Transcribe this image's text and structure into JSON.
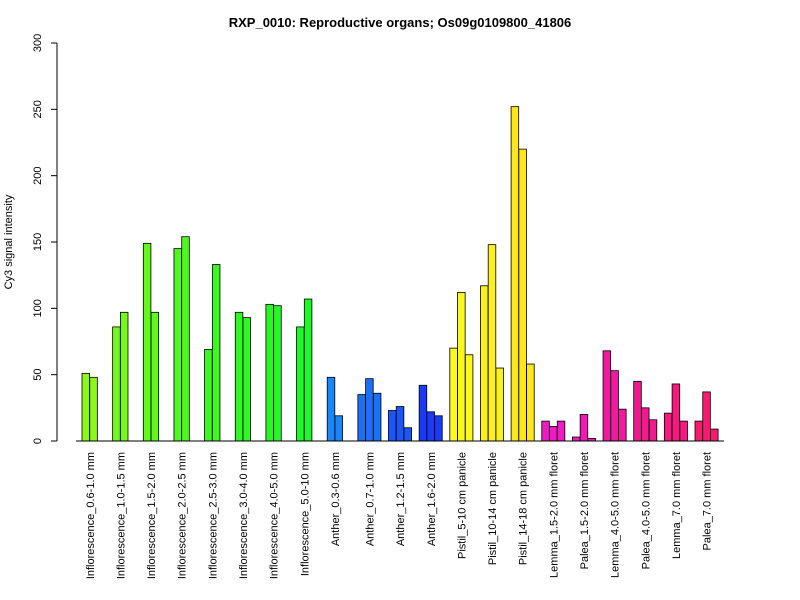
{
  "chart_data": {
    "type": "bar",
    "title": "RXP_0010: Reproductive organs; Os09g0109800_41806",
    "xlabel": "",
    "ylabel": "Cy3 signal intensity",
    "ylim": [
      0,
      300
    ],
    "yticks": [
      0,
      50,
      100,
      150,
      200,
      250,
      300
    ],
    "grid": false,
    "legend": "none",
    "groups": [
      {
        "label": "Inflorescence_0.6-1.0 mm",
        "values": [
          51,
          48
        ],
        "color": "#8cf81a"
      },
      {
        "label": "Inflorescence_1.0-1.5 mm",
        "values": [
          86,
          97
        ],
        "color": "#77f81c"
      },
      {
        "label": "Inflorescence_1.5-2.0 mm",
        "values": [
          149,
          97
        ],
        "color": "#62f81e"
      },
      {
        "label": "Inflorescence_2.0-2.5 mm",
        "values": [
          145,
          154
        ],
        "color": "#4df820"
      },
      {
        "label": "Inflorescence_2.5-3.0 mm",
        "values": [
          69,
          133
        ],
        "color": "#3cf822"
      },
      {
        "label": "Inflorescence_3.0-4.0 mm",
        "values": [
          97,
          93
        ],
        "color": "#30f824"
      },
      {
        "label": "Inflorescence_4.0-5.0 mm",
        "values": [
          103,
          102
        ],
        "color": "#26f826"
      },
      {
        "label": "Inflorescence_5.0-10 mm",
        "values": [
          86,
          107
        ],
        "color": "#1cf828"
      },
      {
        "label": "Anther_0.3-0.6 mm",
        "values": [
          48,
          19
        ],
        "color": "#1a86f8"
      },
      {
        "label": "Anther_0.7-1.0 mm",
        "values": [
          35,
          47,
          36
        ],
        "color": "#1a70f8"
      },
      {
        "label": "Anther_1.2-1.5 mm",
        "values": [
          23,
          26,
          10
        ],
        "color": "#1a56f8"
      },
      {
        "label": "Anther_1.6-2.0 mm",
        "values": [
          42,
          22,
          19
        ],
        "color": "#1a3af8"
      },
      {
        "label": "Pistil_5-10 cm panicle",
        "values": [
          70,
          112,
          65
        ],
        "color": "#fcf81e"
      },
      {
        "label": "Pistil_10-14 cm panicle",
        "values": [
          117,
          148,
          55
        ],
        "color": "#fcf01c"
      },
      {
        "label": "Pistil_14-18 cm panicle",
        "values": [
          252,
          220,
          58
        ],
        "color": "#fce81a"
      },
      {
        "label": "Lemma_1.5-2.0 mm floret",
        "values": [
          15,
          11,
          15
        ],
        "color": "#f01ac4"
      },
      {
        "label": "Palea_1.5-2.0 mm floret",
        "values": [
          3,
          20,
          2
        ],
        "color": "#f01ab4"
      },
      {
        "label": "Lemma_4.0-5.0 mm floret",
        "values": [
          68,
          53,
          24
        ],
        "color": "#f01aa0"
      },
      {
        "label": "Palea_4.0-5.0 mm floret",
        "values": [
          45,
          25,
          16
        ],
        "color": "#f01a90"
      },
      {
        "label": "Lemma_7.0 mm floret",
        "values": [
          21,
          43,
          15
        ],
        "color": "#f41a80"
      },
      {
        "label": "Palea_7.0 mm floret",
        "values": [
          15,
          37,
          9
        ],
        "color": "#f81a70"
      }
    ]
  }
}
